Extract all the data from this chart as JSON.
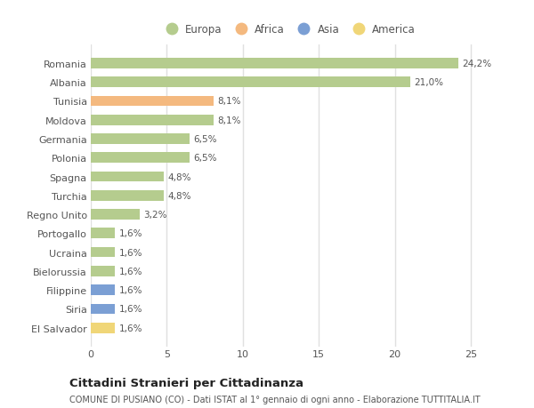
{
  "countries": [
    "Romania",
    "Albania",
    "Tunisia",
    "Moldova",
    "Germania",
    "Polonia",
    "Spagna",
    "Turchia",
    "Regno Unito",
    "Portogallo",
    "Ucraina",
    "Bielorussia",
    "Filippine",
    "Siria",
    "El Salvador"
  ],
  "values": [
    24.2,
    21.0,
    8.1,
    8.1,
    6.5,
    6.5,
    4.8,
    4.8,
    3.2,
    1.6,
    1.6,
    1.6,
    1.6,
    1.6,
    1.6
  ],
  "labels": [
    "24,2%",
    "21,0%",
    "8,1%",
    "8,1%",
    "6,5%",
    "6,5%",
    "4,8%",
    "4,8%",
    "3,2%",
    "1,6%",
    "1,6%",
    "1,6%",
    "1,6%",
    "1,6%",
    "1,6%"
  ],
  "colors": [
    "#b5cc8e",
    "#b5cc8e",
    "#f4b97f",
    "#b5cc8e",
    "#b5cc8e",
    "#b5cc8e",
    "#b5cc8e",
    "#b5cc8e",
    "#b5cc8e",
    "#b5cc8e",
    "#b5cc8e",
    "#b5cc8e",
    "#7b9fd4",
    "#7b9fd4",
    "#f0d678"
  ],
  "continent_colors": {
    "Europa": "#b5cc8e",
    "Africa": "#f4b97f",
    "Asia": "#7b9fd4",
    "America": "#f0d678"
  },
  "legend_labels": [
    "Europa",
    "Africa",
    "Asia",
    "America"
  ],
  "xlim": [
    0,
    26
  ],
  "xticks": [
    0,
    5,
    10,
    15,
    20,
    25
  ],
  "title": "Cittadini Stranieri per Cittadinanza",
  "subtitle": "COMUNE DI PUSIANO (CO) - Dati ISTAT al 1° gennaio di ogni anno - Elaborazione TUTTITALIA.IT",
  "bg_color": "#ffffff",
  "plot_bg_color": "#ffffff",
  "grid_color": "#e0e0e0",
  "bar_height": 0.55
}
